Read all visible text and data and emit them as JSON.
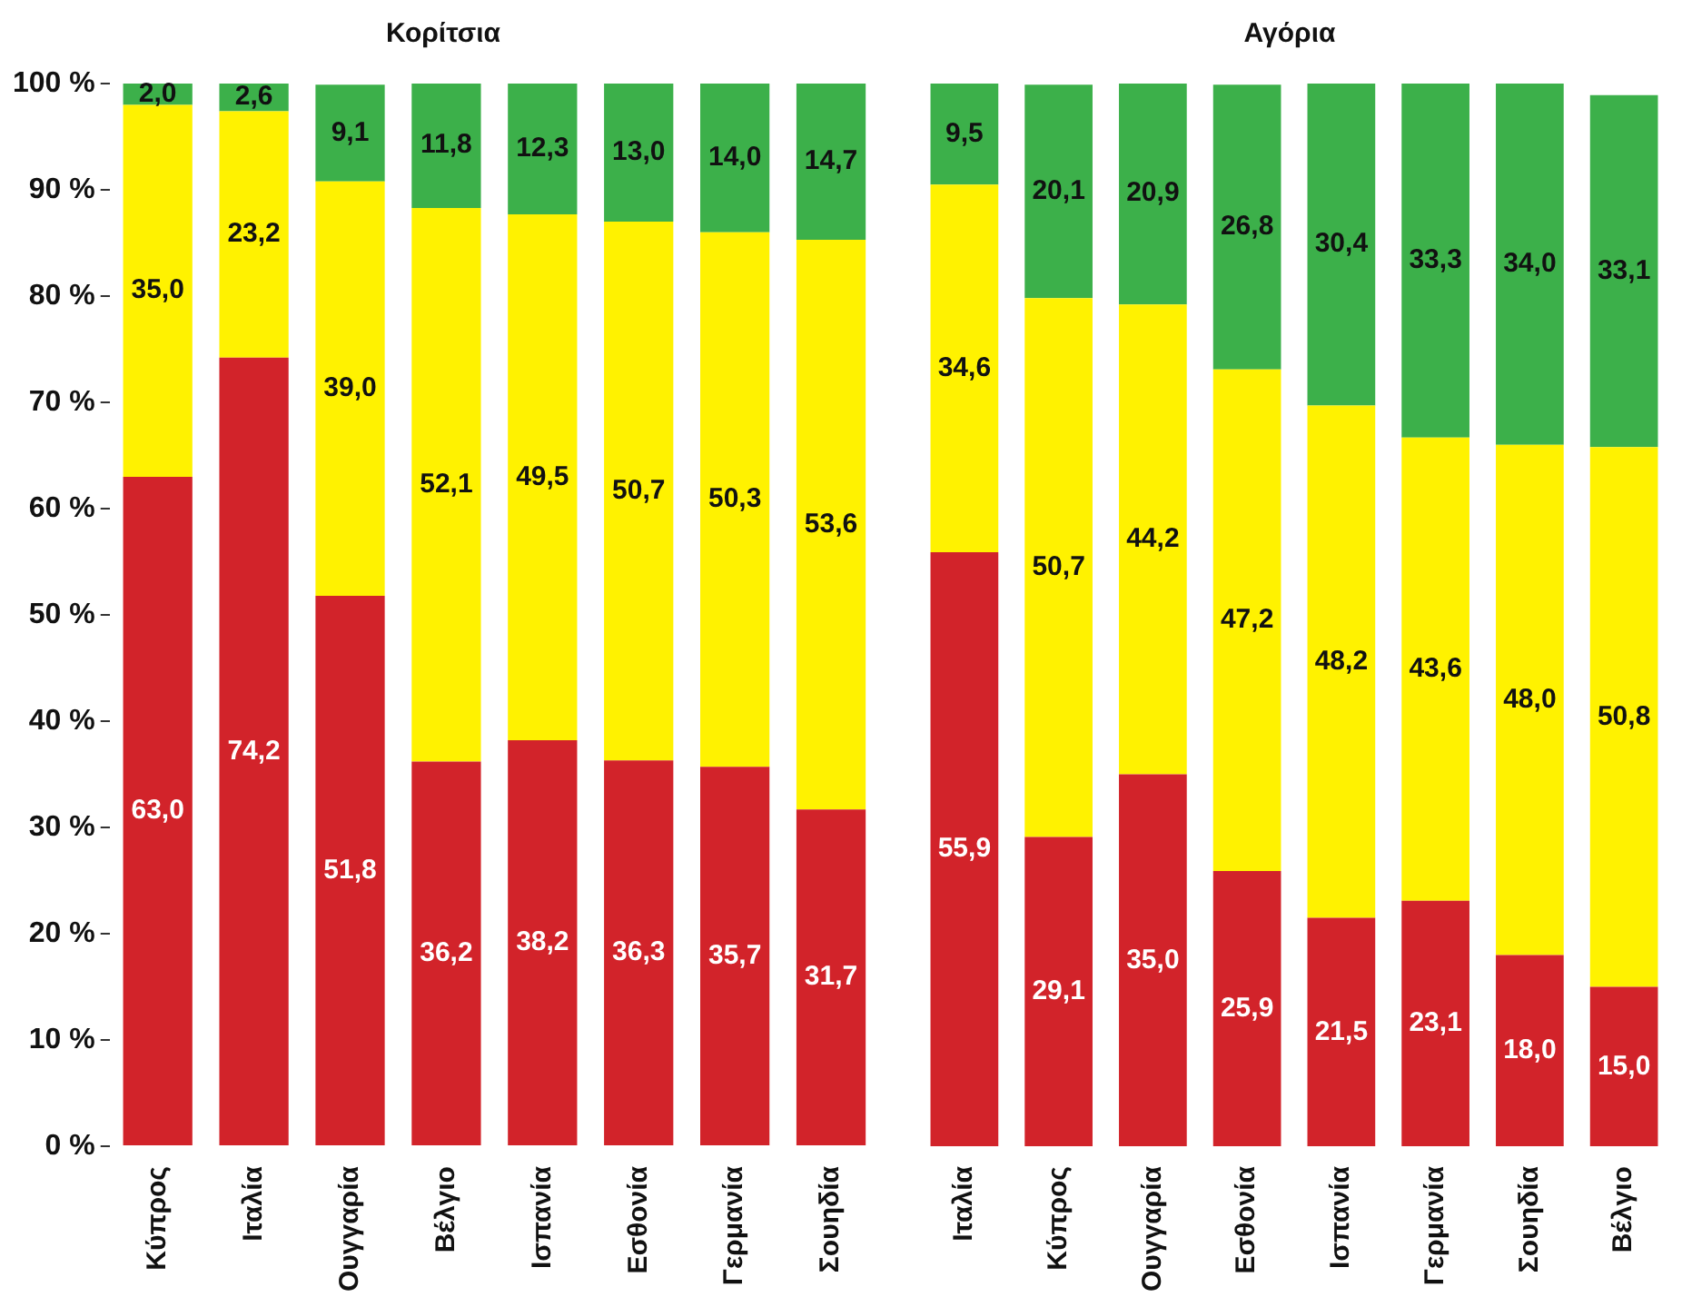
{
  "chart_data": [
    {
      "type": "bar",
      "title": "Κορίτσια",
      "stacked": true,
      "categories": [
        "Κύπρος",
        "Ιταλία",
        "Ουγγαρία",
        "Βέλγιο",
        "Ισπανία",
        "Εσθονία",
        "Γερμανία",
        "Σουηδία"
      ],
      "ylim": [
        0,
        100
      ],
      "yticks": [
        {
          "value": 0,
          "label": "0 %"
        },
        {
          "value": 10,
          "label": "10 %"
        },
        {
          "value": 20,
          "label": "20 %"
        },
        {
          "value": 30,
          "label": "30 %"
        },
        {
          "value": 40,
          "label": "40 %"
        },
        {
          "value": 50,
          "label": "50 %"
        },
        {
          "value": 60,
          "label": "60 %"
        },
        {
          "value": 70,
          "label": "70 %"
        },
        {
          "value": 80,
          "label": "80 %"
        },
        {
          "value": 90,
          "label": "90 %"
        },
        {
          "value": 100,
          "label": "100 %"
        }
      ],
      "series": [
        {
          "color": "#d2232a",
          "values": [
            63.0,
            74.2,
            51.8,
            36.2,
            38.2,
            36.3,
            35.7,
            31.7
          ],
          "value_labels": [
            "63,0",
            "74,2",
            "51,8",
            "36,2",
            "38,2",
            "36,3",
            "35,7",
            "31,7"
          ]
        },
        {
          "color": "#fff200",
          "values": [
            35.0,
            23.2,
            39.0,
            52.1,
            49.5,
            50.7,
            50.3,
            53.6
          ],
          "value_labels": [
            "35,0",
            "23,2",
            "39,0",
            "52,1",
            "49,5",
            "50,7",
            "50,3",
            "53,6"
          ]
        },
        {
          "color": "#3cb04a",
          "values": [
            2.0,
            2.6,
            9.1,
            11.8,
            12.3,
            13.0,
            14.0,
            14.7
          ],
          "value_labels": [
            "2,0",
            "2,6",
            "9,1",
            "11,8",
            "12,3",
            "13,0",
            "14,0",
            "14,7"
          ]
        }
      ]
    },
    {
      "type": "bar",
      "title": "Αγόρια",
      "stacked": true,
      "tick_labels": "x",
      "categories": [
        "Ιταλία",
        "Κύπρος",
        "Ουγγαρία",
        "Εσθονία",
        "Ισπανία",
        "Γερμανία",
        "Σουηδία",
        "Βέλγιο"
      ],
      "ylim": [
        0,
        100
      ],
      "series": [
        {
          "color": "#d2232a",
          "values": [
            55.9,
            29.1,
            35.0,
            25.9,
            21.5,
            23.1,
            18.0,
            15.0
          ],
          "value_labels": [
            "55,9",
            "29,1",
            "35,0",
            "25,9",
            "21,5",
            "23,1",
            "18,0",
            "15,0"
          ]
        },
        {
          "color": "#fff200",
          "values": [
            34.6,
            50.7,
            44.2,
            47.2,
            48.2,
            43.6,
            48.0,
            50.8
          ],
          "value_labels": [
            "34,6",
            "50,7",
            "44,2",
            "47,2",
            "48,2",
            "43,6",
            "48,0",
            "50,8"
          ]
        },
        {
          "color": "#3cb04a",
          "values": [
            9.5,
            20.1,
            20.9,
            26.8,
            30.4,
            33.3,
            34.0,
            33.1
          ],
          "value_labels": [
            "9,5",
            "20,1",
            "20,9",
            "26,8",
            "30,4",
            "33,3",
            "34,0",
            "33,1"
          ]
        }
      ]
    }
  ]
}
